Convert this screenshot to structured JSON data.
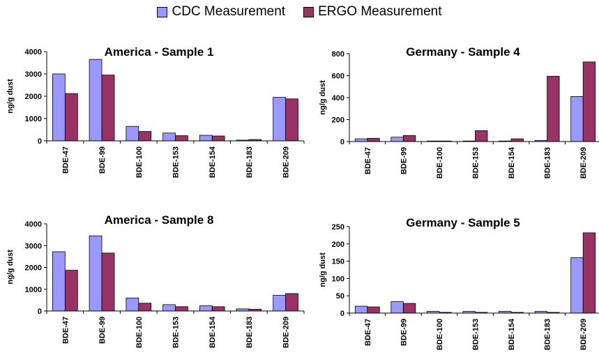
{
  "legend": {
    "cdc": "CDC Measurement",
    "ergo": "ERGO Measurement"
  },
  "colors": {
    "cdc": "#9999ff",
    "ergo": "#993366"
  },
  "chart_data": [
    {
      "type": "bar",
      "title": "America - Sample 1",
      "ylabel": "ng/g dust",
      "categories": [
        "BDE-47",
        "BDE-99",
        "BDE-100",
        "BDE-153",
        "BDE-154",
        "BDE-183",
        "BDE-209"
      ],
      "yticks": [
        0,
        1000,
        2000,
        3000,
        4000
      ],
      "ylim": [
        0,
        4000
      ],
      "series": [
        {
          "name": "CDC Measurement",
          "values": [
            3000,
            3650,
            650,
            350,
            250,
            30,
            1950
          ]
        },
        {
          "name": "ERGO Measurement",
          "values": [
            2120,
            2950,
            420,
            230,
            220,
            60,
            1880
          ]
        }
      ]
    },
    {
      "type": "bar",
      "title": "Germany - Sample 4",
      "ylabel": "ng/g dust",
      "categories": [
        "BDE-47",
        "BDE-99",
        "BDE-100",
        "BDE-153",
        "BDE-154",
        "BDE-183",
        "BDE-209"
      ],
      "yticks": [
        0,
        200,
        400,
        600,
        800
      ],
      "ylim": [
        0,
        800
      ],
      "series": [
        {
          "name": "CDC Measurement",
          "values": [
            25,
            40,
            5,
            5,
            5,
            10,
            410
          ]
        },
        {
          "name": "ERGO Measurement",
          "values": [
            30,
            55,
            5,
            100,
            25,
            595,
            725
          ]
        }
      ]
    },
    {
      "type": "bar",
      "title": "America - Sample 8",
      "ylabel": "ng/g dust",
      "categories": [
        "BDE-47",
        "BDE-99",
        "BDE-100",
        "BDE-153",
        "BDE-154",
        "BDE-183",
        "BDE-209"
      ],
      "yticks": [
        0,
        1000,
        2000,
        3000,
        4000
      ],
      "ylim": [
        0,
        4000
      ],
      "series": [
        {
          "name": "CDC Measurement",
          "values": [
            2720,
            3450,
            600,
            290,
            240,
            100,
            720
          ]
        },
        {
          "name": "ERGO Measurement",
          "values": [
            1870,
            2660,
            360,
            200,
            200,
            80,
            800
          ]
        }
      ]
    },
    {
      "type": "bar",
      "title": "Germany - Sample 5",
      "ylabel": "ng/g dust",
      "categories": [
        "BDE-47",
        "BDE-99",
        "BDE-100",
        "BDE-153",
        "BDE-154",
        "BDE-183",
        "BDE-209"
      ],
      "yticks": [
        0,
        50,
        100,
        150,
        200,
        250
      ],
      "ylim": [
        0,
        250
      ],
      "series": [
        {
          "name": "CDC Measurement",
          "values": [
            20,
            33,
            5,
            5,
            5,
            5,
            160
          ]
        },
        {
          "name": "ERGO Measurement",
          "values": [
            18,
            28,
            2,
            2,
            2,
            2,
            232
          ]
        }
      ]
    }
  ]
}
